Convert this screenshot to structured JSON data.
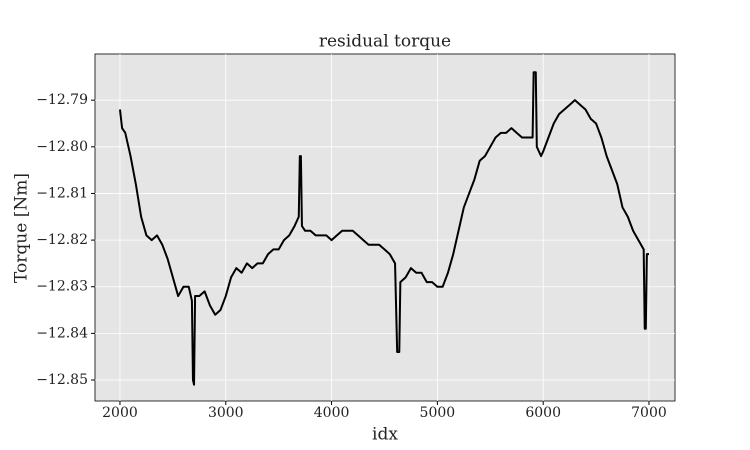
{
  "chart_data": {
    "type": "line",
    "title": "residual torque",
    "x_label": "idx",
    "y_label": "Torque [Nm]",
    "xlim": [
      1764,
      7246
    ],
    "ylim": [
      -12.8545,
      -12.7801
    ],
    "xticks": [
      2000,
      3000,
      4000,
      5000,
      6000,
      7000
    ],
    "yticks": [
      {
        "value": -12.79,
        "label": "−12.79"
      },
      {
        "value": -12.8,
        "label": "−12.80"
      },
      {
        "value": -12.81,
        "label": "−12.81"
      },
      {
        "value": -12.82,
        "label": "−12.82"
      },
      {
        "value": -12.83,
        "label": "−12.83"
      },
      {
        "value": -12.84,
        "label": "−12.84"
      },
      {
        "value": -12.85,
        "label": "−12.85"
      }
    ],
    "grid": true,
    "series": [
      {
        "name": "residual torque",
        "color": "#000000",
        "x": [
          2000,
          2020,
          2050,
          2080,
          2100,
          2150,
          2200,
          2250,
          2300,
          2350,
          2400,
          2450,
          2500,
          2550,
          2600,
          2650,
          2680,
          2690,
          2700,
          2710,
          2750,
          2800,
          2850,
          2900,
          2950,
          3000,
          3050,
          3100,
          3150,
          3200,
          3250,
          3300,
          3350,
          3400,
          3450,
          3500,
          3550,
          3600,
          3650,
          3690,
          3700,
          3710,
          3720,
          3750,
          3800,
          3850,
          3900,
          3950,
          4000,
          4050,
          4100,
          4150,
          4200,
          4250,
          4300,
          4350,
          4400,
          4450,
          4500,
          4550,
          4600,
          4620,
          4640,
          4650,
          4700,
          4750,
          4800,
          4850,
          4900,
          4950,
          5000,
          5050,
          5100,
          5150,
          5200,
          5250,
          5300,
          5350,
          5400,
          5450,
          5500,
          5550,
          5600,
          5650,
          5700,
          5750,
          5800,
          5850,
          5900,
          5910,
          5930,
          5940,
          5980,
          6000,
          6050,
          6100,
          6150,
          6200,
          6250,
          6300,
          6350,
          6400,
          6450,
          6500,
          6550,
          6600,
          6650,
          6700,
          6750,
          6800,
          6850,
          6900,
          6950,
          6960,
          6970,
          6980,
          7000
        ],
        "values": [
          -12.792,
          -12.796,
          -12.797,
          -12.8,
          -12.802,
          -12.808,
          -12.815,
          -12.819,
          -12.82,
          -12.819,
          -12.821,
          -12.824,
          -12.828,
          -12.832,
          -12.83,
          -12.83,
          -12.833,
          -12.85,
          -12.851,
          -12.832,
          -12.832,
          -12.831,
          -12.834,
          -12.836,
          -12.835,
          -12.832,
          -12.828,
          -12.826,
          -12.827,
          -12.825,
          -12.826,
          -12.825,
          -12.825,
          -12.823,
          -12.822,
          -12.822,
          -12.82,
          -12.819,
          -12.817,
          -12.815,
          -12.802,
          -12.802,
          -12.817,
          -12.818,
          -12.818,
          -12.819,
          -12.819,
          -12.819,
          -12.82,
          -12.819,
          -12.818,
          -12.818,
          -12.818,
          -12.819,
          -12.82,
          -12.821,
          -12.821,
          -12.821,
          -12.822,
          -12.823,
          -12.825,
          -12.844,
          -12.844,
          -12.829,
          -12.828,
          -12.826,
          -12.827,
          -12.827,
          -12.829,
          -12.829,
          -12.83,
          -12.83,
          -12.827,
          -12.823,
          -12.818,
          -12.813,
          -12.81,
          -12.807,
          -12.803,
          -12.802,
          -12.8,
          -12.798,
          -12.797,
          -12.797,
          -12.796,
          -12.797,
          -12.798,
          -12.798,
          -12.798,
          -12.784,
          -12.784,
          -12.8,
          -12.802,
          -12.801,
          -12.798,
          -12.795,
          -12.793,
          -12.792,
          -12.791,
          -12.79,
          -12.791,
          -12.792,
          -12.794,
          -12.795,
          -12.798,
          -12.802,
          -12.805,
          -12.808,
          -12.813,
          -12.815,
          -12.818,
          -12.82,
          -12.822,
          -12.839,
          -12.839,
          -12.823,
          -12.823
        ]
      }
    ]
  }
}
